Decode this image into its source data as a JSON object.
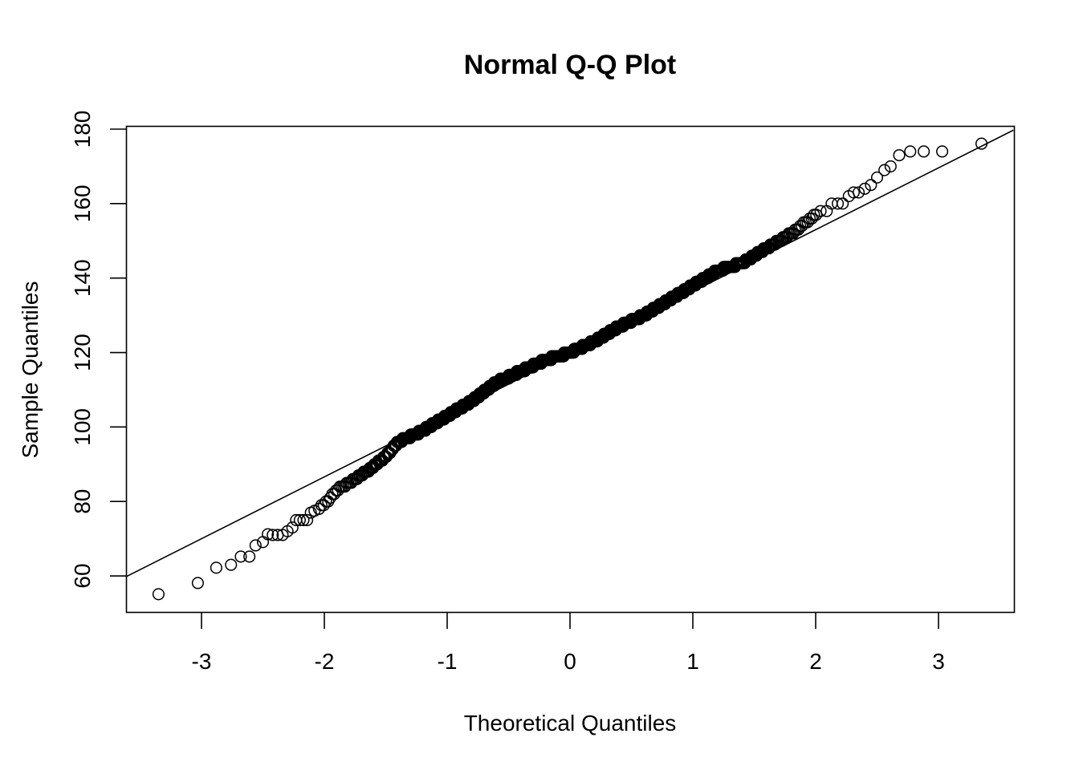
{
  "chart_data": {
    "type": "scatter",
    "title": "Normal Q-Q Plot",
    "xlabel": "Theoretical Quantiles",
    "ylabel": "Sample Quantiles",
    "xlim": [
      -3.62,
      3.61
    ],
    "ylim": [
      50.5,
      180.5
    ],
    "x_ticks": [
      -3,
      -2,
      -1,
      0,
      1,
      2,
      3
    ],
    "y_ticks": [
      60,
      80,
      100,
      120,
      140,
      160,
      180
    ],
    "grid": false,
    "legend": null,
    "marker": "open-circle",
    "reference_line": {
      "intercept": 119.8,
      "slope": 16.6
    },
    "lower_tail_points": [
      [
        -3.35,
        55.1
      ],
      [
        -3.03,
        58.1
      ],
      [
        -2.88,
        62.2
      ],
      [
        -2.76,
        63.0
      ],
      [
        -2.68,
        65.2
      ],
      [
        -2.61,
        65.2
      ],
      [
        -2.56,
        68.2
      ],
      [
        -2.5,
        69.1
      ],
      [
        -2.46,
        71.2
      ],
      [
        -2.42,
        71.0
      ],
      [
        -2.38,
        71.0
      ],
      [
        -2.34,
        71.0
      ],
      [
        -2.3,
        72.0
      ],
      [
        -2.26,
        73.0
      ],
      [
        -2.23,
        75.0
      ],
      [
        -2.2,
        75.0
      ],
      [
        -2.17,
        75.0
      ],
      [
        -2.14,
        75.0
      ],
      [
        -2.11,
        77.0
      ],
      [
        -2.08,
        77.5
      ]
    ],
    "body_anchors": [
      [
        -2.05,
        78
      ],
      [
        -2.0,
        79
      ],
      [
        -1.9,
        83
      ],
      [
        -1.7,
        87
      ],
      [
        -1.5,
        92
      ],
      [
        -1.4,
        96
      ],
      [
        -1.2,
        99
      ],
      [
        -1.0,
        103
      ],
      [
        -0.8,
        107
      ],
      [
        -0.6,
        112
      ],
      [
        -0.4,
        115
      ],
      [
        -0.2,
        118
      ],
      [
        0.0,
        120
      ],
      [
        0.2,
        123
      ],
      [
        0.4,
        127
      ],
      [
        0.6,
        130
      ],
      [
        0.8,
        134
      ],
      [
        1.0,
        138
      ],
      [
        1.2,
        142
      ],
      [
        1.4,
        144
      ],
      [
        1.6,
        148
      ],
      [
        1.8,
        152
      ],
      [
        2.0,
        157
      ],
      [
        2.2,
        160
      ],
      [
        2.3,
        162
      ]
    ],
    "body_point_count": 440,
    "upper_tail_points": [
      [
        2.04,
        158
      ],
      [
        2.09,
        158
      ],
      [
        2.13,
        160
      ],
      [
        2.18,
        160
      ],
      [
        2.22,
        160
      ],
      [
        2.27,
        162
      ],
      [
        2.31,
        163
      ],
      [
        2.35,
        163
      ],
      [
        2.4,
        164
      ],
      [
        2.45,
        165
      ],
      [
        2.5,
        167
      ],
      [
        2.56,
        169
      ],
      [
        2.61,
        170
      ],
      [
        2.68,
        173
      ],
      [
        2.77,
        174
      ],
      [
        2.88,
        174
      ],
      [
        3.03,
        174
      ],
      [
        3.35,
        176.1
      ]
    ]
  },
  "plot": {
    "title": "Normal Q-Q Plot",
    "xlabel": "Theoretical Quantiles",
    "ylabel": "Sample Quantiles",
    "x_tick_labels": [
      "-3",
      "-2",
      "-1",
      "0",
      "1",
      "2",
      "3"
    ],
    "y_tick_labels": [
      "60",
      "80",
      "100",
      "120",
      "140",
      "160",
      "180"
    ]
  }
}
